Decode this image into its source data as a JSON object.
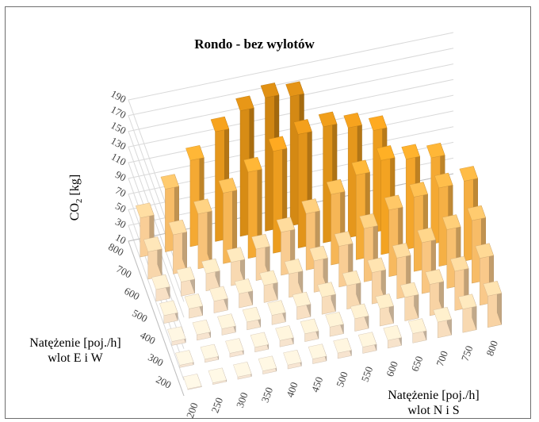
{
  "chart_data": {
    "type": "bar3d",
    "title": "Rondo - bez wylotów",
    "zlabel_main": "CO",
    "zlabel_sub": "2",
    "zlabel_unit": " [kg]",
    "xlabel_lines": [
      "Natężenie [poj./h]",
      "wlot N i S"
    ],
    "ylabel_lines": [
      "Natężenie [poj./h]",
      "wlot E i W"
    ],
    "x_categories": [
      "200",
      "250",
      "300",
      "350",
      "400",
      "450",
      "500",
      "550",
      "600",
      "650",
      "700",
      "750",
      "800"
    ],
    "y_categories": [
      "200",
      "300",
      "400",
      "500",
      "600",
      "700",
      "800"
    ],
    "z_ticks": [
      "10",
      "30",
      "50",
      "70",
      "90",
      "110",
      "130",
      "150",
      "170",
      "190"
    ],
    "zlim": [
      10,
      190
    ],
    "values": [
      [
        11,
        12,
        13,
        14,
        15,
        16,
        17,
        18,
        20,
        22,
        30,
        40,
        50
      ],
      [
        13,
        14,
        15,
        16,
        18,
        20,
        22,
        26,
        32,
        40,
        50,
        60,
        70
      ],
      [
        15,
        17,
        18,
        20,
        22,
        26,
        32,
        40,
        50,
        62,
        75,
        85,
        90
      ],
      [
        20,
        22,
        25,
        28,
        32,
        40,
        50,
        62,
        78,
        95,
        105,
        110,
        112
      ],
      [
        25,
        28,
        32,
        40,
        50,
        65,
        82,
        100,
        118,
        130,
        125,
        120,
        0
      ],
      [
        45,
        60,
        80,
        100,
        120,
        140,
        155,
        158,
        150,
        140,
        0,
        0,
        0
      ],
      [
        60,
        90,
        120,
        150,
        170,
        180,
        175,
        0,
        0,
        0,
        0,
        0,
        0
      ]
    ],
    "grid": true,
    "color_ramp": [
      "#f7e8d8",
      "#f9c98a",
      "#f3a322",
      "#c9800f"
    ]
  }
}
